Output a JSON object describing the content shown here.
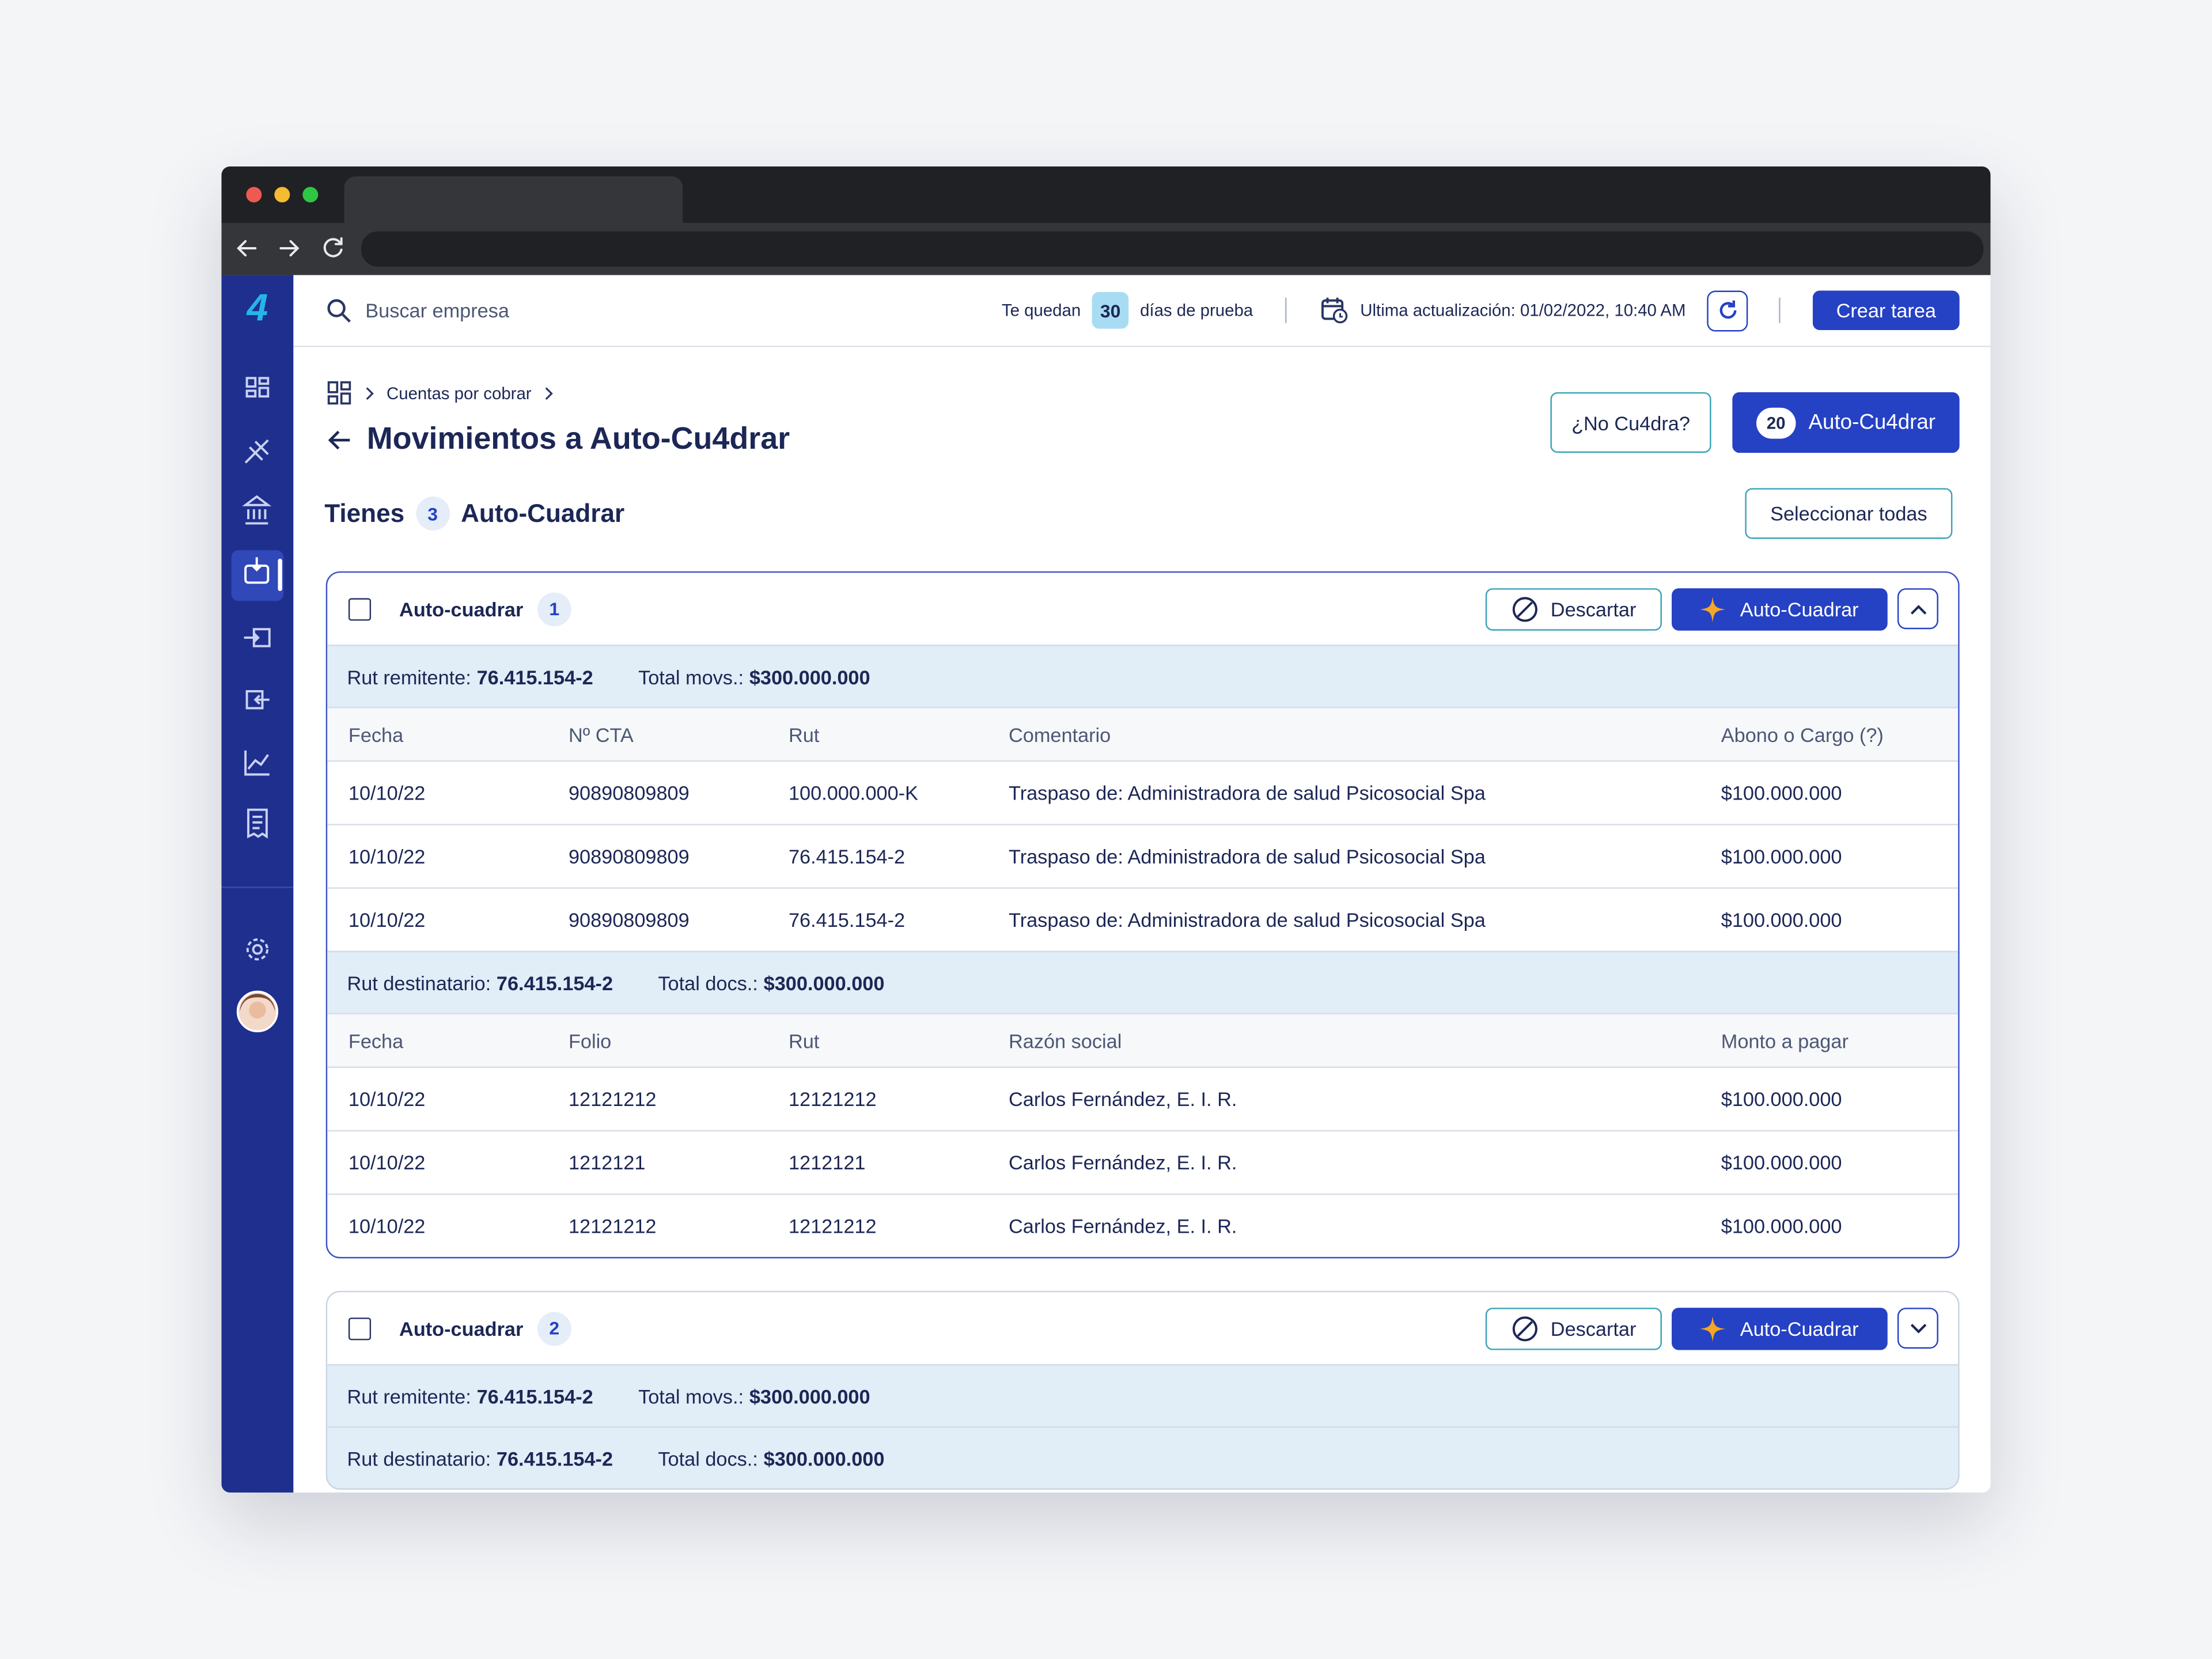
{
  "header": {
    "logo": "4",
    "search_placeholder": "Buscar empresa",
    "trial_prefix": "Te quedan",
    "trial_days": "30",
    "trial_suffix": "días de prueba",
    "last_update": "Ultima actualización: 01/02/2022, 10:40 AM",
    "create_task": "Crear tarea"
  },
  "breadcrumb": [
    "Cuentas por cobrar"
  ],
  "page": {
    "title": "Movimientos a Auto-Cu4drar",
    "no_cuadra": "¿No Cu4dra?",
    "auto_count": "20",
    "auto_button": "Auto-Cu4drar",
    "summary_prefix": "Tienes",
    "summary_count": "3",
    "summary_suffix": "Auto-Cuadrar",
    "select_all": "Seleccionar todas"
  },
  "groups": [
    {
      "label": "Auto-cuadrar",
      "number": "1",
      "discard": "Descartar",
      "action": "Auto-Cuadrar",
      "sections": [
        {
          "type": "summary",
          "label": "Rut remitente:",
          "value": "76.415.154-2",
          "total_label": "Total movs.:",
          "total_value": "$300.000.000"
        },
        {
          "type": "table",
          "columns": [
            "Fecha",
            "Nº CTA",
            "Rut",
            "Comentario",
            "Abono o Cargo (?)"
          ],
          "rows": [
            [
              "10/10/22",
              "90890809809",
              "100.000.000-K",
              "Traspaso de: Administradora de salud Psicosocial Spa",
              "$100.000.000"
            ],
            [
              "10/10/22",
              "90890809809",
              "76.415.154-2",
              "Traspaso de: Administradora de salud Psicosocial Spa",
              "$100.000.000"
            ],
            [
              "10/10/22",
              "90890809809",
              "76.415.154-2",
              "Traspaso de: Administradora de salud Psicosocial Spa",
              "$100.000.000"
            ]
          ]
        },
        {
          "type": "summary",
          "label": "Rut destinatario:",
          "value": "76.415.154-2",
          "total_label": "Total docs.:",
          "total_value": "$300.000.000"
        },
        {
          "type": "table",
          "columns": [
            "Fecha",
            "Folio",
            "Rut",
            "Razón social",
            "Monto a pagar"
          ],
          "rows": [
            [
              "10/10/22",
              "12121212",
              "12121212",
              "Carlos Fernández, E. I. R.",
              "$100.000.000"
            ],
            [
              "10/10/22",
              "1212121",
              "1212121",
              "Carlos Fernández, E. I. R.",
              "$100.000.000"
            ],
            [
              "10/10/22",
              "12121212",
              "12121212",
              "Carlos Fernández, E. I. R.",
              "$100.000.000"
            ]
          ]
        }
      ]
    },
    {
      "label": "Auto-cuadrar",
      "number": "2",
      "discard": "Descartar",
      "action": "Auto-Cuadrar",
      "sections": [
        {
          "type": "summary",
          "label": "Rut remitente:",
          "value": "76.415.154-2",
          "total_label": "Total movs.:",
          "total_value": "$300.000.000"
        },
        {
          "type": "summary",
          "label": "Rut destinatario:",
          "value": "76.415.154-2",
          "total_label": "Total docs.:",
          "total_value": "$300.000.000"
        }
      ]
    }
  ]
}
